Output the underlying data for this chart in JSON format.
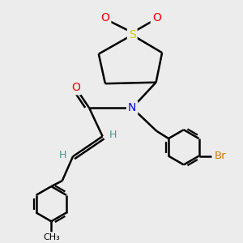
{
  "bg_color": "#ececec",
  "atom_colors": {
    "S": "#cccc00",
    "O": "#ff0000",
    "N": "#0000ff",
    "Br": "#cc7700",
    "C": "#000000",
    "H": "#4a9090"
  },
  "bond_color": "#000000",
  "bond_width": 1.8,
  "figsize": [
    3.0,
    3.0
  ],
  "dpi": 100
}
